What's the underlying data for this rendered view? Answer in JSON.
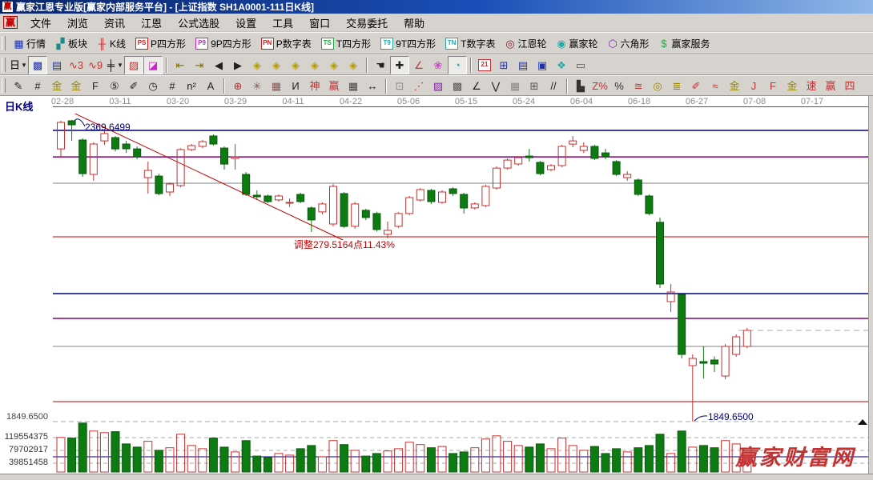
{
  "window": {
    "title": "赢家江恩专业版[赢家内部服务平台] - [上证指数  SH1A0001-111日K线]",
    "app_icon": "赢"
  },
  "menu": {
    "logo": "赢",
    "items": [
      {
        "name": "file",
        "label": "文件"
      },
      {
        "name": "browse",
        "label": "浏览"
      },
      {
        "name": "news",
        "label": "资讯"
      },
      {
        "name": "gann",
        "label": "江恩"
      },
      {
        "name": "formula-stock-pick",
        "label": "公式选股"
      },
      {
        "name": "settings",
        "label": "设置"
      },
      {
        "name": "tools",
        "label": "工具"
      },
      {
        "name": "window",
        "label": "窗口"
      },
      {
        "name": "trade-entrust",
        "label": "交易委托"
      },
      {
        "name": "help",
        "label": "帮助"
      }
    ]
  },
  "toolbar_main": {
    "buttons": [
      {
        "name": "quotes",
        "label": "行情",
        "glyph": "▦",
        "color": "#2233AA"
      },
      {
        "name": "sectors",
        "label": "板块",
        "glyph": "▞",
        "color": "#1A8A8A"
      },
      {
        "name": "kline",
        "label": "K线",
        "glyph": "╫",
        "color": "#C43232"
      },
      {
        "name": "p-square",
        "label": "P四方形",
        "glyph": "PS",
        "boxed": true,
        "color": "#CC2222"
      },
      {
        "name": "9p-square",
        "label": "9P四方形",
        "glyph": "P9",
        "boxed": true,
        "color": "#CC22CC"
      },
      {
        "name": "p-number-table",
        "label": "P数字表",
        "glyph": "PN",
        "boxed": true,
        "color": "#CC2222"
      },
      {
        "name": "t-square",
        "label": "T四方形",
        "glyph": "TS",
        "boxed": true,
        "color": "#22AA44"
      },
      {
        "name": "9t-square",
        "label": "9T四方形",
        "glyph": "T9",
        "boxed": true,
        "color": "#22AAAA"
      },
      {
        "name": "t-number-table",
        "label": "T数字表",
        "glyph": "TN",
        "boxed": true,
        "color": "#22AAAA"
      },
      {
        "name": "gann-wheel",
        "label": "江恩轮",
        "glyph": "◎",
        "color": "#882222"
      },
      {
        "name": "winner-wheel",
        "label": "赢家轮",
        "glyph": "◉",
        "color": "#22AAAA"
      },
      {
        "name": "hexagon",
        "label": "六角形",
        "glyph": "⬡",
        "color": "#8822CC"
      },
      {
        "name": "winner-service",
        "label": "赢家服务",
        "glyph": "$",
        "color": "#22AA44"
      }
    ]
  },
  "toolbar_view": {
    "buttons": [
      {
        "name": "period-day",
        "glyph": "日",
        "color": "#000000",
        "caret": true
      },
      {
        "name": "compress-view",
        "glyph": "▩",
        "color": "#2233AA",
        "pressed": true
      },
      {
        "name": "info-panel",
        "glyph": "▤",
        "color": "#2233AA"
      },
      {
        "name": "wave-3",
        "glyph": "∿3",
        "color": "#C43232"
      },
      {
        "name": "wave-9",
        "glyph": "∿9",
        "color": "#C43232"
      },
      {
        "name": "candle-style",
        "glyph": "╪",
        "color": "#000000",
        "caret": true
      },
      {
        "name": "gann-grid-toggle",
        "glyph": "▨",
        "color": "#C43232",
        "pressed": true
      },
      {
        "name": "color-chart-toggle",
        "glyph": "◪",
        "color": "#CC22CC",
        "pressed": true
      },
      {
        "sep": true
      },
      {
        "name": "seek-first",
        "glyph": "⇤",
        "color": "#807000"
      },
      {
        "name": "seek-last",
        "glyph": "⇥",
        "color": "#807000"
      },
      {
        "name": "step-back",
        "glyph": "◀",
        "color": "#222222"
      },
      {
        "name": "step-forward",
        "glyph": "▶",
        "color": "#222222"
      },
      {
        "name": "zoom-left",
        "glyph": "◈",
        "color": "#B89A00"
      },
      {
        "name": "zoom-right",
        "glyph": "◈",
        "color": "#B89A00"
      },
      {
        "name": "expand-h",
        "glyph": "◈",
        "color": "#B89A00"
      },
      {
        "name": "compress-h",
        "glyph": "◈",
        "color": "#B89A00"
      },
      {
        "name": "expand-all",
        "glyph": "◈",
        "color": "#B89A00"
      },
      {
        "name": "compress-all",
        "glyph": "◈",
        "color": "#B89A00"
      },
      {
        "sep": true
      },
      {
        "name": "hand-tool",
        "glyph": "☚",
        "color": "#222222"
      },
      {
        "name": "crosshair-tool",
        "glyph": "✚",
        "color": "#222222",
        "pressed": true
      },
      {
        "name": "angle-tool",
        "glyph": "∠",
        "color": "#C43232"
      },
      {
        "name": "flower-tool",
        "glyph": "❀",
        "color": "#CC44CC"
      },
      {
        "name": "brain-tool",
        "glyph": "◔",
        "color": "#22AAAA",
        "pressed": true
      },
      {
        "sep": true
      },
      {
        "name": "calendar",
        "glyph": "21",
        "boxed": true,
        "color": "#C43232"
      },
      {
        "name": "calculator",
        "glyph": "⊞",
        "color": "#2233AA"
      },
      {
        "name": "notes",
        "glyph": "▤",
        "color": "#2233AA"
      },
      {
        "name": "save",
        "glyph": "▣",
        "color": "#2233AA"
      },
      {
        "name": "chart-settings",
        "glyph": "❖",
        "color": "#22AAAA"
      },
      {
        "name": "printer",
        "glyph": "▭",
        "color": "#555555"
      }
    ]
  },
  "toolbar_draw": {
    "buttons": [
      {
        "name": "pencil-tool",
        "glyph": "✎",
        "color": "#222222"
      },
      {
        "name": "ruler-grid",
        "glyph": "#",
        "color": "#222222"
      },
      {
        "name": "gold-grid-1",
        "glyph": "金",
        "color": "#998800"
      },
      {
        "name": "gold-grid-2",
        "glyph": "金",
        "color": "#998800"
      },
      {
        "name": "f-grid",
        "glyph": "F",
        "color": "#222222"
      },
      {
        "name": "spiral-5",
        "glyph": "⑤",
        "color": "#222222"
      },
      {
        "name": "pencil-mark",
        "glyph": "✐",
        "color": "#222222"
      },
      {
        "name": "time-clock",
        "glyph": "◷",
        "color": "#222222"
      },
      {
        "name": "comb-grid",
        "glyph": "#",
        "color": "#222222"
      },
      {
        "name": "n-square",
        "glyph": "n²",
        "color": "#222222"
      },
      {
        "name": "a-tool",
        "glyph": "A",
        "color": "#222222"
      },
      {
        "sep": true
      },
      {
        "name": "compass-target",
        "glyph": "⊕",
        "color": "#AA3333"
      },
      {
        "name": "star-burst",
        "glyph": "✳",
        "color": "#885555"
      },
      {
        "name": "grid-star",
        "glyph": "▦",
        "color": "#885555"
      },
      {
        "name": "i-wave",
        "glyph": "И",
        "color": "#222222"
      },
      {
        "name": "shen-grid",
        "glyph": "神",
        "color": "#C43232"
      },
      {
        "name": "ying-grid",
        "glyph": "赢",
        "color": "#C43232"
      },
      {
        "name": "grid-123",
        "glyph": "▦",
        "color": "#444444"
      },
      {
        "name": "h-span",
        "glyph": "↔",
        "color": "#222222"
      },
      {
        "sep": true
      },
      {
        "name": "box-frame",
        "glyph": "⊡",
        "color": "#888888"
      },
      {
        "name": "fan-lines",
        "glyph": "⋰",
        "color": "#C43232"
      },
      {
        "name": "box-fan",
        "glyph": "▨",
        "color": "#8822AA"
      },
      {
        "name": "box-pattern",
        "glyph": "▩",
        "color": "#555555"
      },
      {
        "name": "angle-line",
        "glyph": "∠",
        "color": "#222222"
      },
      {
        "name": "zigzag",
        "glyph": "⋁",
        "color": "#222222"
      },
      {
        "name": "grid-a",
        "glyph": "▦",
        "color": "#888888"
      },
      {
        "name": "grid-b",
        "glyph": "⊞",
        "color": "#555555"
      },
      {
        "name": "parallel-lines",
        "glyph": "//",
        "color": "#222222"
      },
      {
        "sep": true
      },
      {
        "name": "step-box",
        "glyph": "▙",
        "color": "#333333"
      },
      {
        "name": "z-percent",
        "glyph": "Z%",
        "color": "#C43232"
      },
      {
        "name": "percent",
        "glyph": "%",
        "color": "#333333"
      },
      {
        "name": "percent-lines",
        "glyph": "≊",
        "color": "#C43232"
      },
      {
        "name": "gold-circle",
        "glyph": "◎",
        "color": "#998800"
      },
      {
        "name": "gold-lines",
        "glyph": "≣",
        "color": "#998800"
      },
      {
        "name": "red-pencil",
        "glyph": "✐",
        "color": "#C43232"
      },
      {
        "name": "double-wave",
        "glyph": "≈",
        "color": "#C43232"
      },
      {
        "name": "gold-level",
        "glyph": "金",
        "color": "#998800"
      },
      {
        "name": "j-angle",
        "glyph": "J",
        "color": "#C43232"
      },
      {
        "name": "f-angle",
        "glyph": "F",
        "color": "#C43232"
      },
      {
        "name": "gold-angle",
        "glyph": "金",
        "color": "#998800"
      },
      {
        "name": "speed-angle",
        "glyph": "速",
        "color": "#C43232"
      },
      {
        "name": "ying-angle",
        "glyph": "赢",
        "color": "#C43232"
      },
      {
        "name": "four-angle",
        "glyph": "四",
        "color": "#C43232"
      }
    ]
  },
  "chart": {
    "pane_label": "日K线",
    "dates": [
      "02-28",
      "03-11",
      "03-20",
      "03-29",
      "04-11",
      "04-22",
      "05-06",
      "05-15",
      "05-24",
      "06-04",
      "06-18",
      "06-27",
      "07-08",
      "07-17"
    ],
    "axis": {
      "price_label": "1849.6500",
      "volume_labels": [
        "119554375",
        "79702917",
        "39851458"
      ]
    },
    "annotations": {
      "high": "2369.6499",
      "adjust": "调整279.5164点11.43%",
      "low": "1849.6500"
    },
    "watermark": "赢家财富网",
    "colors": {
      "up": "#C43232",
      "down": "#0E7B12",
      "down_dark": "#0A5A0C",
      "navy": "#000080",
      "purple": "#800080",
      "gray": "#808080",
      "red_line": "#C00000",
      "dash": "#A8A8A8"
    }
  },
  "chart_data": {
    "type": "candlestick+volume",
    "symbol": "上证指数 SH1A0001",
    "period": "日K线",
    "x_dates": [
      "02-28",
      "03-11",
      "03-20",
      "03-29",
      "04-11",
      "04-22",
      "05-06",
      "05-15",
      "05-24",
      "06-04",
      "06-18",
      "06-27",
      "07-08",
      "07-17"
    ],
    "price_high_anchor": 2369.65,
    "price_low_anchor": 1849.65,
    "candles_ohlc": [
      [
        2319.9,
        2368.3,
        2306.1,
        2365.5
      ],
      [
        2368.3,
        2369.6,
        2333.7,
        2361.4
      ],
      [
        2335.1,
        2337.9,
        2271.7,
        2277.2
      ],
      [
        2275.8,
        2331.0,
        2264.8,
        2328.2
      ],
      [
        2333.7,
        2351.7,
        2326.9,
        2346.2
      ],
      [
        2339.3,
        2342.0,
        2315.8,
        2319.9
      ],
      [
        2328.2,
        2333.7,
        2313.0,
        2319.9
      ],
      [
        2319.9,
        2324.1,
        2302.0,
        2306.1
      ],
      [
        2270.3,
        2297.9,
        2242.8,
        2282.7
      ],
      [
        2273.0,
        2276.9,
        2240.0,
        2242.8
      ],
      [
        2245.5,
        2262.0,
        2238.6,
        2259.3
      ],
      [
        2256.5,
        2321.3,
        2253.8,
        2318.6
      ],
      [
        2318.6,
        2328.2,
        2315.8,
        2325.5
      ],
      [
        2324.1,
        2335.1,
        2321.3,
        2332.3
      ],
      [
        2342.0,
        2344.8,
        2325.5,
        2328.2
      ],
      [
        2321.3,
        2324.1,
        2284.1,
        2293.7
      ],
      [
        2303.4,
        2328.2,
        2284.1,
        2306.1
      ],
      [
        2275.8,
        2279.9,
        2238.6,
        2241.4
      ],
      [
        2240.0,
        2248.3,
        2231.8,
        2237.3
      ],
      [
        2238.6,
        2241.4,
        2226.3,
        2229.0
      ],
      [
        2231.8,
        2241.4,
        2229.0,
        2238.6
      ],
      [
        2226.3,
        2234.5,
        2219.4,
        2227.6
      ],
      [
        2241.4,
        2244.1,
        2226.3,
        2229.0
      ],
      [
        2218.0,
        2220.8,
        2176.6,
        2197.3
      ],
      [
        2211.1,
        2227.6,
        2207.0,
        2224.9
      ],
      [
        2190.4,
        2259.3,
        2186.3,
        2255.2
      ],
      [
        2242.8,
        2245.5,
        2183.5,
        2186.3
      ],
      [
        2186.3,
        2228.3,
        2182.2,
        2224.9
      ],
      [
        2213.9,
        2216.6,
        2197.3,
        2201.5
      ],
      [
        2208.4,
        2211.1,
        2177.5,
        2180.8
      ],
      [
        2172.5,
        2194.6,
        2165.6,
        2179.4
      ],
      [
        2186.3,
        2211.1,
        2183.5,
        2208.4
      ],
      [
        2208.4,
        2238.6,
        2205.6,
        2235.9
      ],
      [
        2231.8,
        2252.4,
        2229.0,
        2249.7
      ],
      [
        2248.3,
        2251.0,
        2224.9,
        2229.0
      ],
      [
        2227.6,
        2248.3,
        2224.9,
        2245.5
      ],
      [
        2251.0,
        2253.8,
        2238.6,
        2242.8
      ],
      [
        2241.4,
        2244.1,
        2208.4,
        2218.0
      ],
      [
        2218.0,
        2227.6,
        2215.3,
        2224.9
      ],
      [
        2222.1,
        2258.0,
        2219.4,
        2255.2
      ],
      [
        2252.4,
        2289.6,
        2249.7,
        2286.8
      ],
      [
        2286.8,
        2303.4,
        2284.1,
        2300.6
      ],
      [
        2293.7,
        2307.5,
        2291.0,
        2304.8
      ],
      [
        2307.5,
        2319.9,
        2297.9,
        2304.8
      ],
      [
        2296.5,
        2299.2,
        2274.4,
        2277.2
      ],
      [
        2284.1,
        2293.7,
        2281.3,
        2291.0
      ],
      [
        2291.0,
        2326.9,
        2288.2,
        2324.1
      ],
      [
        2328.2,
        2342.0,
        2322.7,
        2333.7
      ],
      [
        2317.2,
        2331.0,
        2313.0,
        2324.1
      ],
      [
        2324.1,
        2326.9,
        2300.6,
        2303.4
      ],
      [
        2313.0,
        2319.9,
        2302.0,
        2306.1
      ],
      [
        2297.9,
        2300.6,
        2273.0,
        2275.8
      ],
      [
        2270.3,
        2281.3,
        2264.8,
        2275.8
      ],
      [
        2266.2,
        2269.0,
        2238.6,
        2241.4
      ],
      [
        2238.6,
        2241.4,
        2205.6,
        2208.4
      ],
      [
        2193.2,
        2201.5,
        2080.0,
        2086.9
      ],
      [
        2056.6,
        2086.9,
        2038.6,
        2073.1
      ],
      [
        2069.0,
        2071.8,
        1958.6,
        1965.5
      ],
      [
        1946.2,
        1965.5,
        1849.7,
        1958.6
      ],
      [
        1953.1,
        1979.3,
        1924.1,
        1950.3
      ],
      [
        1955.9,
        1962.1,
        1935.2,
        1949.0
      ],
      [
        1928.3,
        1983.4,
        1922.7,
        1979.3
      ],
      [
        1965.5,
        2000.0,
        1961.4,
        1995.9
      ],
      [
        1979.3,
        2011.0,
        1976.5,
        2006.9
      ]
    ],
    "volumes_millions": [
      120,
      118,
      165,
      140,
      135,
      138,
      100,
      90,
      108,
      80,
      88,
      130,
      95,
      85,
      118,
      90,
      75,
      110,
      62,
      58,
      70,
      65,
      85,
      95,
      60,
      110,
      98,
      80,
      62,
      70,
      78,
      85,
      105,
      98,
      88,
      92,
      70,
      75,
      88,
      115,
      125,
      108,
      95,
      90,
      100,
      85,
      118,
      95,
      80,
      92,
      70,
      85,
      75,
      88,
      95,
      130,
      70,
      140,
      90,
      95,
      88,
      110,
      100,
      87
    ],
    "hlines": [
      {
        "price": 2351.7,
        "color": "navy"
      },
      {
        "price": 2306.1,
        "color": "purple"
      },
      {
        "price": 2260.7,
        "color": "gray"
      },
      {
        "price": 2168.3,
        "color": "red"
      },
      {
        "price": 2070.4,
        "color": "navy"
      },
      {
        "price": 2027.6,
        "color": "purple"
      },
      {
        "price": 1979.3,
        "color": "gray"
      },
      {
        "price": 1884.1,
        "color": "red"
      },
      {
        "price": 1849.65,
        "color": "dash",
        "dashed": true,
        "arrow_end": true
      }
    ],
    "close_level_dashed": {
      "price": 2006.9,
      "from_session": 62.2
    },
    "trendline": {
      "from_session": 1.3,
      "from_price": 2380.6,
      "to_session": 25.9,
      "to_price": 2162.8
    },
    "volume_gridlines_millions": [
      119.554375,
      79.702917,
      39.851458
    ],
    "volume_navy_line_millions": 59.8,
    "high_annotation_price": 2369.6499,
    "low_annotation_price": 1849.65,
    "adjust_annotation": {
      "points": 279.5164,
      "percent": 11.43
    }
  }
}
